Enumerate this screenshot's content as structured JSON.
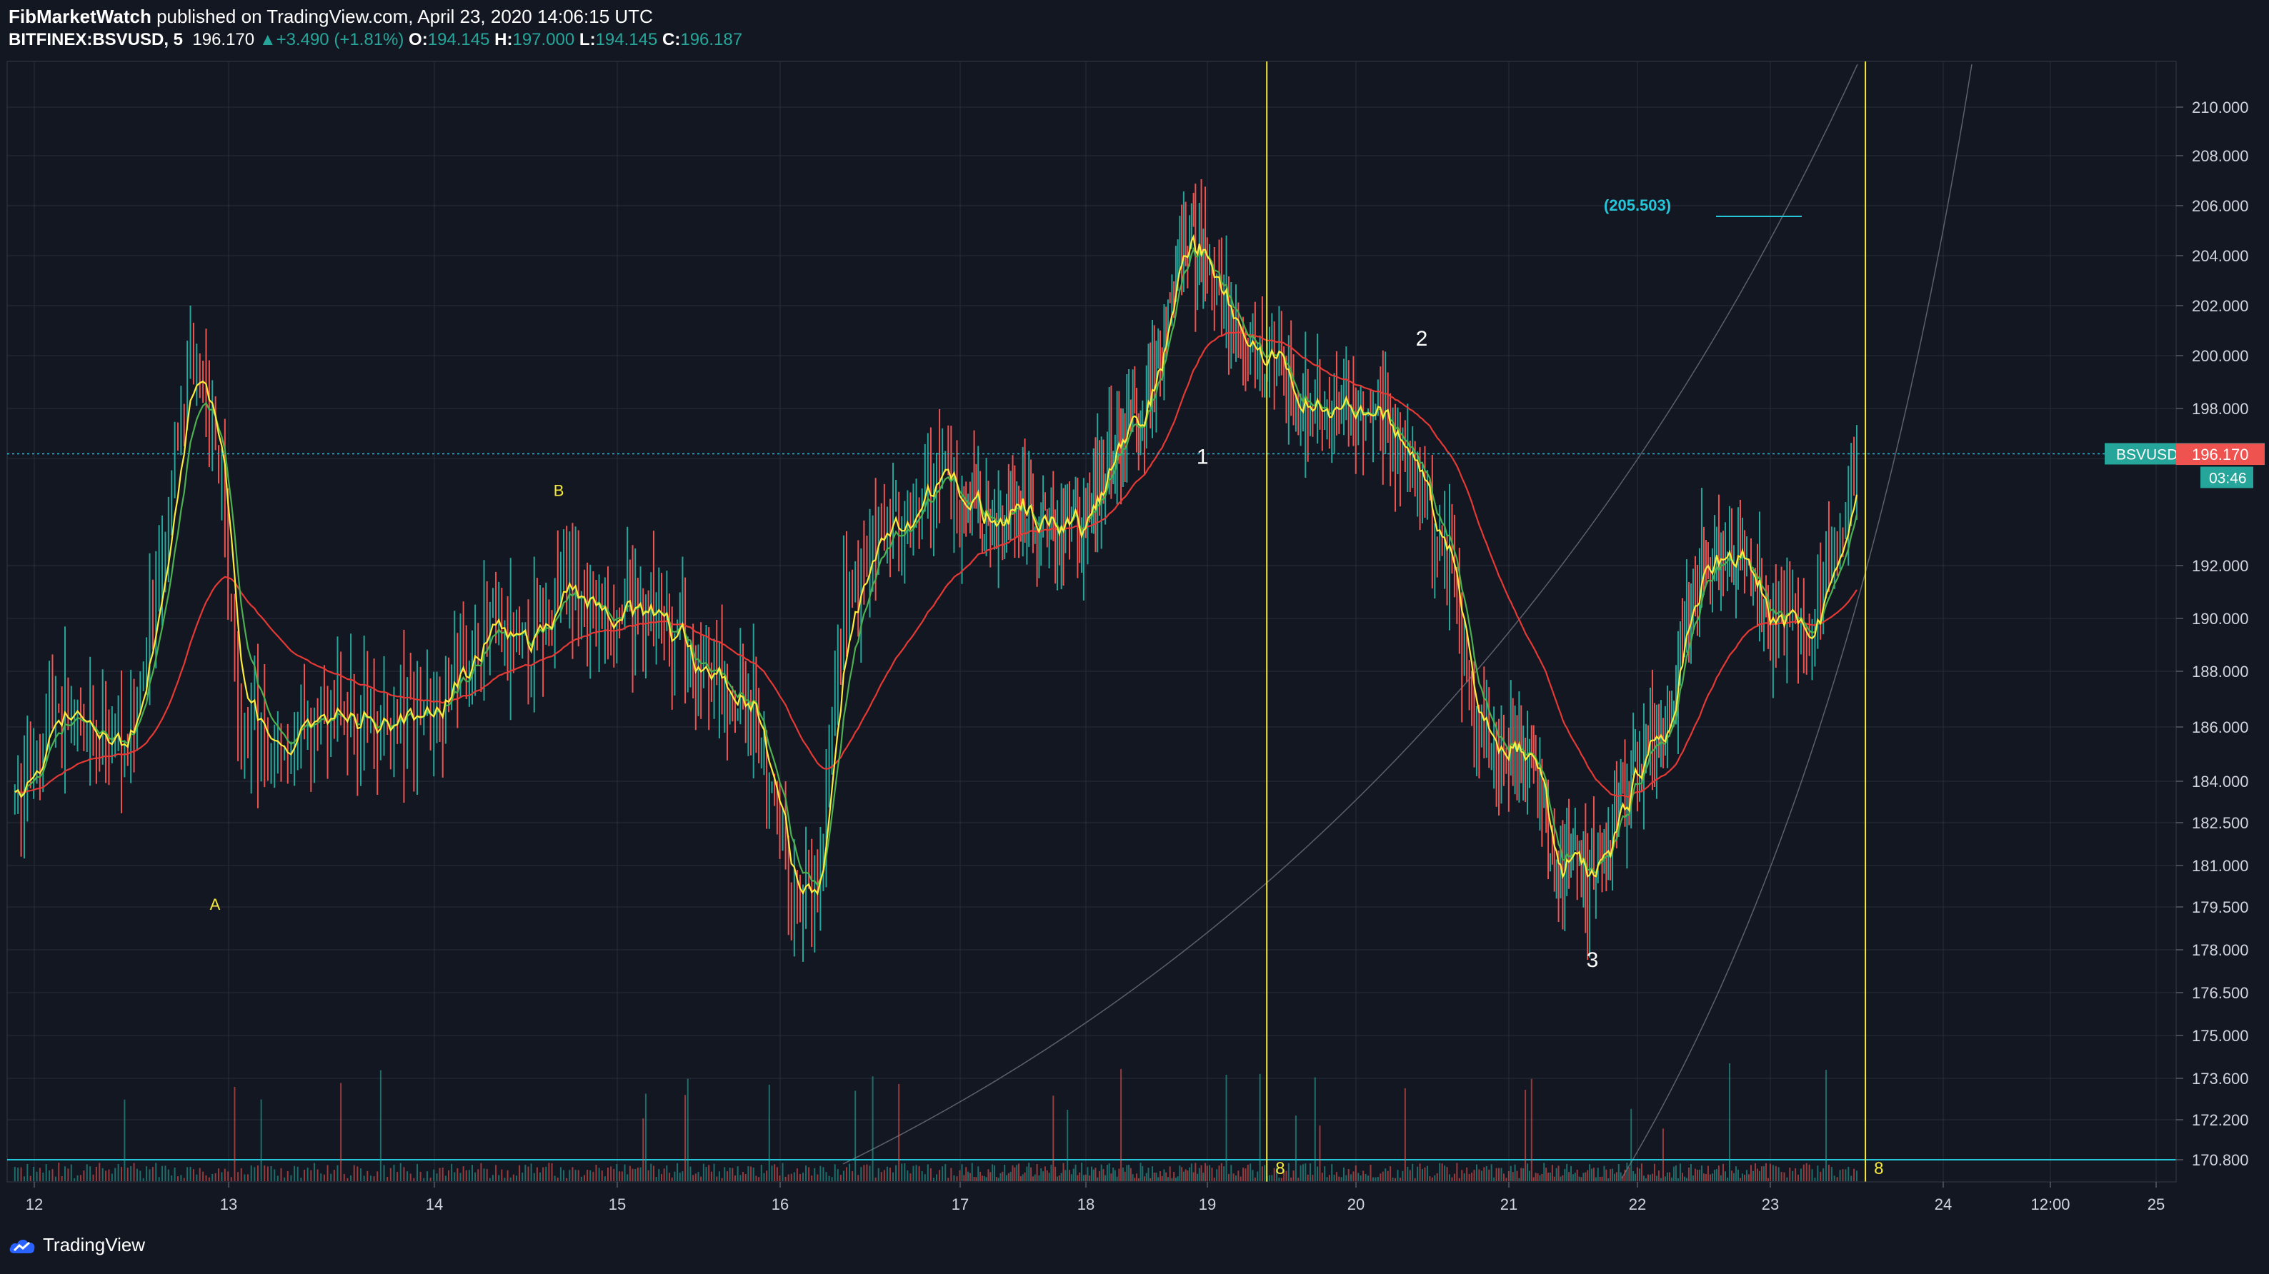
{
  "header": {
    "author": "FibMarketWatch",
    "published": " published on TradingView.com, April 23, 2020 14:06:15 UTC",
    "symbol": "BITFINEX:BSVUSD, 5",
    "last": "196.170",
    "change": "+3.490 (+1.81%)",
    "o_label": "O:",
    "o": "194.145",
    "h_label": "H:",
    "h": "197.000",
    "l_label": "L:",
    "l": "194.145",
    "c_label": "C:",
    "c": "196.187"
  },
  "footer": {
    "brand": "TradingView"
  },
  "colors": {
    "background": "#131722",
    "grid": "#2a2e39",
    "up": "#26a69a",
    "down": "#ef5350",
    "ma_fast": "#ffeb3b",
    "ma_mid": "#4caf50",
    "ma_slow": "#e53935",
    "vline": "#f5e93b",
    "hline": "#26c6da"
  },
  "chart_data": {
    "type": "candlestick",
    "title": "BITFINEX:BSVUSD, 5",
    "price_axis_ticks": [
      "210.000",
      "208.000",
      "206.000",
      "204.000",
      "202.000",
      "200.000",
      "198.000",
      "196.000",
      "192.000",
      "190.000",
      "188.000",
      "186.000",
      "184.000",
      "182.500",
      "181.000",
      "179.500",
      "178.000",
      "176.500",
      "175.000",
      "173.600",
      "172.200",
      "170.800"
    ],
    "time_axis_ticks": [
      "12",
      "13",
      "14",
      "15",
      "16",
      "17",
      "18",
      "19",
      "20",
      "21",
      "22",
      "23",
      "24",
      "12:00",
      "25"
    ],
    "price_path": [
      {
        "t": 11.9,
        "p": 183.0
      },
      {
        "t": 12.1,
        "p": 187.0
      },
      {
        "t": 12.3,
        "p": 185.0
      },
      {
        "t": 12.5,
        "p": 186.2
      },
      {
        "t": 12.65,
        "p": 191.0
      },
      {
        "t": 12.8,
        "p": 200.5
      },
      {
        "t": 12.95,
        "p": 196.0
      },
      {
        "t": 13.05,
        "p": 186.5
      },
      {
        "t": 13.2,
        "p": 185.0
      },
      {
        "t": 13.5,
        "p": 186.5
      },
      {
        "t": 13.8,
        "p": 186.0
      },
      {
        "t": 14.1,
        "p": 187.5
      },
      {
        "t": 14.3,
        "p": 189.5
      },
      {
        "t": 14.5,
        "p": 188.5
      },
      {
        "t": 14.7,
        "p": 191.5
      },
      {
        "t": 14.9,
        "p": 190.0
      },
      {
        "t": 15.2,
        "p": 190.5
      },
      {
        "t": 15.5,
        "p": 188.0
      },
      {
        "t": 15.8,
        "p": 187.0
      },
      {
        "t": 15.95,
        "p": 183.5
      },
      {
        "t": 16.05,
        "p": 180.0
      },
      {
        "t": 16.2,
        "p": 179.5
      },
      {
        "t": 16.35,
        "p": 190.0
      },
      {
        "t": 16.6,
        "p": 193.5
      },
      {
        "t": 16.9,
        "p": 195.5
      },
      {
        "t": 17.2,
        "p": 193.5
      },
      {
        "t": 17.5,
        "p": 194.0
      },
      {
        "t": 17.8,
        "p": 193.5
      },
      {
        "t": 18.05,
        "p": 193.5
      },
      {
        "t": 18.2,
        "p": 196.0
      },
      {
        "t": 18.4,
        "p": 197.5
      },
      {
        "t": 18.6,
        "p": 199.5
      },
      {
        "t": 18.8,
        "p": 205.0
      },
      {
        "t": 19.0,
        "p": 204.0
      },
      {
        "t": 19.2,
        "p": 200.5
      },
      {
        "t": 19.45,
        "p": 200.0
      },
      {
        "t": 19.7,
        "p": 197.5
      },
      {
        "t": 19.95,
        "p": 198.0
      },
      {
        "t": 20.2,
        "p": 197.5
      },
      {
        "t": 20.4,
        "p": 195.5
      },
      {
        "t": 20.6,
        "p": 192.0
      },
      {
        "t": 20.8,
        "p": 186.0
      },
      {
        "t": 21.0,
        "p": 185.0
      },
      {
        "t": 21.2,
        "p": 184.0
      },
      {
        "t": 21.4,
        "p": 181.0
      },
      {
        "t": 21.6,
        "p": 180.5
      },
      {
        "t": 21.8,
        "p": 182.0
      },
      {
        "t": 22.0,
        "p": 185.0
      },
      {
        "t": 22.2,
        "p": 185.5
      },
      {
        "t": 22.4,
        "p": 190.5
      },
      {
        "t": 22.6,
        "p": 192.5
      },
      {
        "t": 22.8,
        "p": 192.5
      },
      {
        "t": 23.0,
        "p": 190.0
      },
      {
        "t": 23.2,
        "p": 189.5
      },
      {
        "t": 23.4,
        "p": 192.5
      },
      {
        "t": 23.5,
        "p": 196.17
      }
    ],
    "last_price": {
      "label": "BSVUSD",
      "value": "196.187",
      "countdown": "03:46",
      "close": "196.170"
    },
    "annotations": [
      {
        "text": "A",
        "t": 12.93,
        "p": 179.4,
        "color": "#f5e93b"
      },
      {
        "text": "B",
        "t": 14.68,
        "p": 194.6,
        "color": "#f5e93b"
      },
      {
        "text": "1",
        "t": 18.96,
        "p": 195.8,
        "color": "#ffffff"
      },
      {
        "text": "2",
        "t": 20.43,
        "p": 200.4,
        "color": "#ffffff"
      },
      {
        "text": "3",
        "t": 21.65,
        "p": 177.4,
        "color": "#ffffff"
      },
      {
        "text": "(205.503)",
        "t": 22.0,
        "p": 205.8,
        "color": "#26c6da"
      }
    ],
    "vertical_lines": [
      {
        "t": 19.4,
        "label": "8"
      },
      {
        "t": 23.55,
        "label": "8"
      }
    ],
    "grid": true
  }
}
